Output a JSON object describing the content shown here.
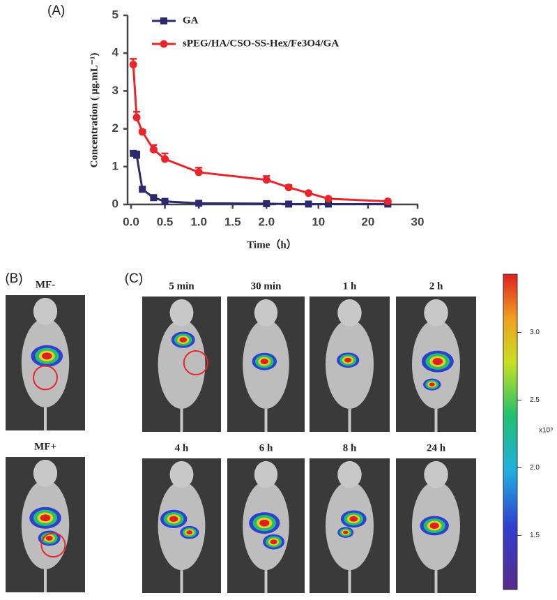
{
  "chart_data": {
    "type": "line",
    "panel_label": "(A)",
    "xlabel": "Time（h）",
    "ylabel": "Concentration ( μg.mL⁻¹)",
    "x": [
      0.033,
      0.083,
      0.167,
      0.333,
      0.5,
      1,
      2,
      4,
      8,
      12,
      24
    ],
    "x_segments": [
      {
        "xlim": [
          0,
          2.1
        ],
        "xticks": [
          {
            "value": 0,
            "label": "0.0"
          },
          0.5,
          {
            "value": 1,
            "label": "1.0"
          },
          1.5,
          {
            "value": 2,
            "label": "2.0"
          }
        ]
      },
      {
        "xlim": [
          3,
          30
        ],
        "xticks": [
          10,
          20,
          30
        ]
      }
    ],
    "ylim": [
      0,
      5
    ],
    "yticks": [
      0,
      1,
      2,
      3,
      4,
      5
    ],
    "series": [
      {
        "name": "GA",
        "color": "#2b2a6e",
        "marker": "square",
        "values": [
          1.35,
          1.3,
          0.4,
          0.18,
          0.08,
          0.03,
          0.02,
          0.01,
          0.01,
          0.01,
          0.01
        ],
        "errors": [
          0.05,
          0.1,
          0.03,
          0.02,
          0.01,
          0.01,
          0.01,
          0.01,
          0.01,
          0.01,
          0.01
        ]
      },
      {
        "name": "sPEG/HA/CSO-SS-Hex/Fe3O4/GA",
        "color": "#e8252b",
        "marker": "circle",
        "values": [
          3.7,
          2.3,
          1.92,
          1.45,
          1.2,
          0.85,
          0.65,
          0.45,
          0.3,
          0.15,
          0.08
        ],
        "errors": [
          0.15,
          0.15,
          0.05,
          0.12,
          0.15,
          0.12,
          0.1,
          0.06,
          0.04,
          0.03,
          0.02
        ]
      }
    ]
  },
  "image_panels": [
    {
      "label": "(B)",
      "images": [
        "MF-",
        "MF+"
      ]
    },
    {
      "label": "(C)",
      "images": [
        "5 min",
        "30 min",
        "1 h",
        "2 h",
        "4 h",
        "6 h",
        "8 h",
        "24 h"
      ]
    }
  ],
  "colorbar": {
    "lim": [
      1.1,
      3.43
    ],
    "ticks": [
      {
        "value": 1.5,
        "label": "1.5"
      },
      {
        "value": 2,
        "label": "2.0"
      },
      {
        "value": 2.5,
        "label": "2.5"
      },
      {
        "value": 3,
        "label": "3.0"
      }
    ],
    "unit_label": "x10⁹"
  }
}
